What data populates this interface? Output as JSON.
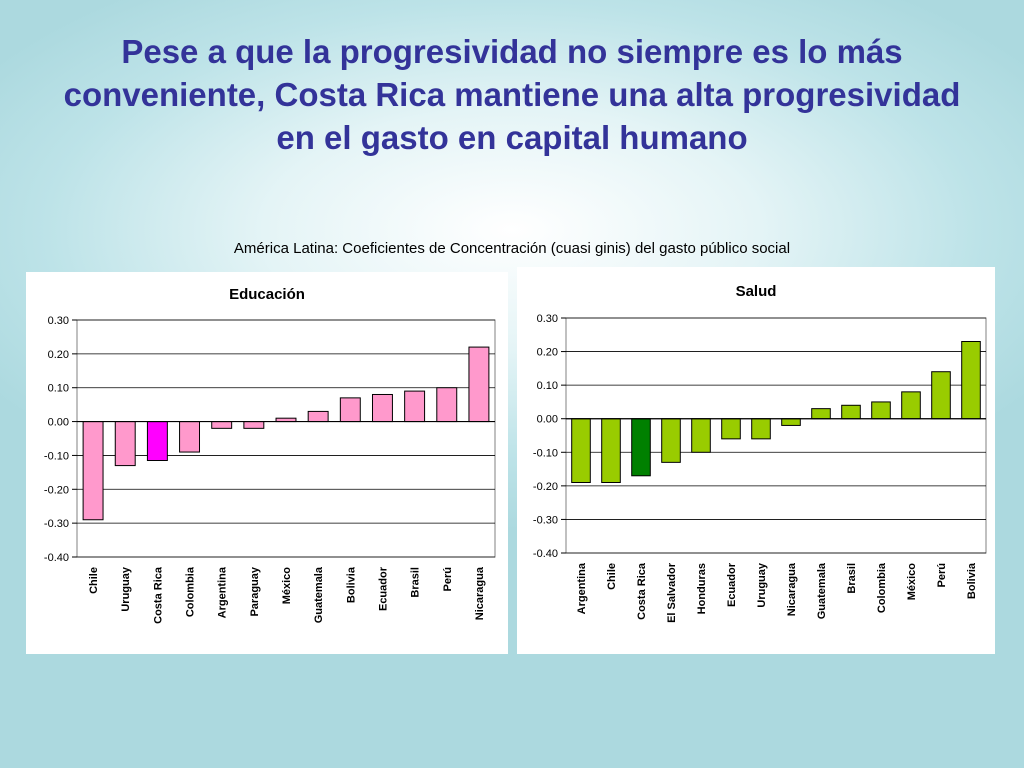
{
  "slide": {
    "title": "Pese a que la progresividad no siempre es lo más conveniente, Costa Rica mantiene una alta progresividad en el gasto en capital humano",
    "subtitle": "América Latina: Coeficientes de Concentración (cuasi ginis) del gasto público social"
  },
  "chart_data": [
    {
      "type": "bar",
      "title": "Educación",
      "xlabel": "",
      "ylabel": "",
      "ylim": [
        -0.4,
        0.3
      ],
      "yticks": [
        0.3,
        0.2,
        0.1,
        0.0,
        -0.1,
        -0.2,
        -0.3,
        -0.4
      ],
      "ytick_labels": [
        "0.30",
        "0.20",
        "0.10",
        "0.00",
        "-0.10",
        "-0.20",
        "-0.30",
        "-0.40"
      ],
      "grid": true,
      "legend": "none",
      "categories": [
        "Chile",
        "Uruguay",
        "Costa Rica",
        "Colombia",
        "Argentina",
        "Paraguay",
        "México",
        "Guatemala",
        "Bolivia",
        "Ecuador",
        "Brasil",
        "Perú",
        "Nicaragua"
      ],
      "values": [
        -0.29,
        -0.13,
        -0.115,
        -0.09,
        -0.02,
        -0.02,
        0.01,
        0.03,
        0.07,
        0.08,
        0.09,
        0.1,
        0.22
      ],
      "colors": {
        "default": "#ff99cc",
        "highlight": "#ff00ff"
      },
      "highlight": "Costa Rica"
    },
    {
      "type": "bar",
      "title": "Salud",
      "xlabel": "",
      "ylabel": "",
      "ylim": [
        -0.4,
        0.3
      ],
      "yticks": [
        0.3,
        0.2,
        0.1,
        0.0,
        -0.1,
        -0.2,
        -0.3,
        -0.4
      ],
      "ytick_labels": [
        "0.30",
        "0.20",
        "0.10",
        "0.00",
        "-0.10",
        "-0.20",
        "-0.30",
        "-0.40"
      ],
      "grid": true,
      "legend": "none",
      "categories": [
        "Argentina",
        "Chile",
        "Costa Rica",
        "El Salvador",
        "Honduras",
        "Ecuador",
        "Uruguay",
        "Nicaragua",
        "Guatemala",
        "Brasil",
        "Colombia",
        "México",
        "Perú",
        "Bolivia"
      ],
      "values": [
        -0.19,
        -0.19,
        -0.17,
        -0.13,
        -0.1,
        -0.06,
        -0.06,
        -0.02,
        0.03,
        0.04,
        0.05,
        0.08,
        0.14,
        0.23
      ],
      "colors": {
        "default": "#99cc00",
        "highlight": "#008000"
      },
      "highlight": "Costa Rica"
    }
  ]
}
